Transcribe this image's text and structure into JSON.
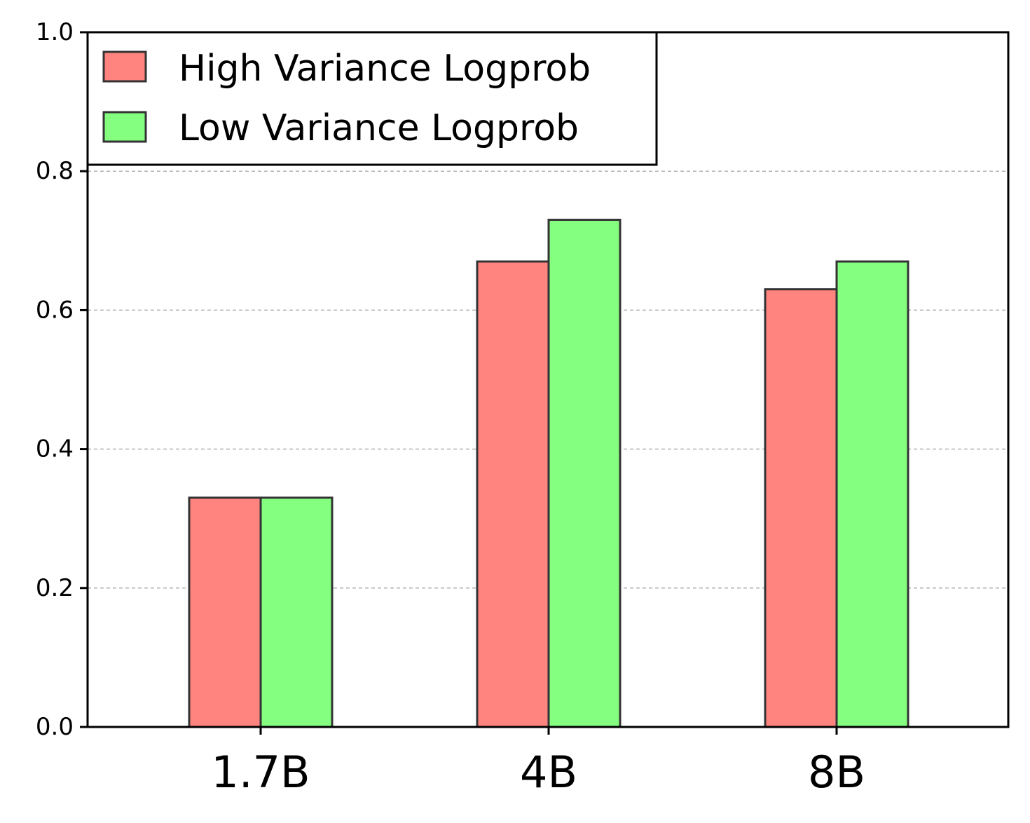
{
  "chart_data": {
    "type": "bar",
    "categories": [
      "1.7B",
      "4B",
      "8B"
    ],
    "series": [
      {
        "name": "High Variance Logprob",
        "values": [
          0.33,
          0.67,
          0.63
        ],
        "color": "#ff8480"
      },
      {
        "name": "Low Variance Logprob",
        "values": [
          0.33,
          0.73,
          0.67
        ],
        "color": "#84ff80"
      }
    ],
    "ylim": [
      0,
      1.0
    ],
    "yticks": [
      "0.0",
      "0.2",
      "0.4",
      "0.6",
      "0.8",
      "1.0"
    ],
    "grid": "horizontal-dashed",
    "legend_position": "top-left",
    "bar_edge_color": "#333333"
  }
}
